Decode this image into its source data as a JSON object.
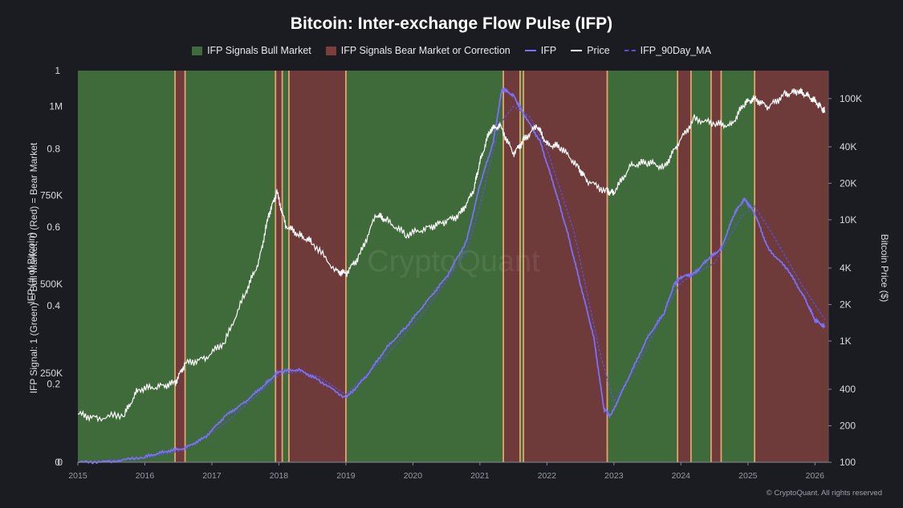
{
  "title": "Bitcoin: Inter-exchange Flow Pulse (IFP)",
  "legend": [
    {
      "label": "IFP Signals Bull Market",
      "kind": "box",
      "color": "#3f6b3a"
    },
    {
      "label": "IFP Signals Bear Market or Correction",
      "kind": "box",
      "color": "#7a3e3b"
    },
    {
      "label": "IFP",
      "kind": "line",
      "color": "#7b6fff"
    },
    {
      "label": "Price",
      "kind": "line",
      "color": "#ffffff"
    },
    {
      "label": "IFP_90Day_MA",
      "kind": "dash",
      "color": "#5a4fd6"
    }
  ],
  "left_axis_signal_label": "IFP Signal: 1 (Green) = Bull Market, 0 (Red) = Bear Market",
  "left_axis_ifp_label": "IFP (# of Bitcoin)",
  "right_axis_label": "Bitcoin Price ($)",
  "copyright": "© CryptoQuant. All rights reserved",
  "watermark": "CryptoQuant",
  "chart_data": {
    "type": "line",
    "x_ticks": [
      "2015",
      "2016",
      "2017",
      "2018",
      "2019",
      "2020",
      "2021",
      "2022",
      "2023",
      "2024",
      "2025",
      "2026"
    ],
    "x_range": [
      2015.0,
      2026.2
    ],
    "signal_axis": {
      "ticks": [
        "0",
        "0.2",
        "0.4",
        "0.6",
        "0.8",
        "1"
      ],
      "range": [
        0,
        1
      ]
    },
    "ifp_axis": {
      "ticks": [
        "0",
        "250K",
        "500K",
        "750K",
        "1M"
      ],
      "range": [
        0,
        1100000
      ]
    },
    "price_axis": {
      "ticks": [
        "100",
        "200",
        "400",
        "1K",
        "2K",
        "4K",
        "10K",
        "20K",
        "40K",
        "100K"
      ],
      "tick_values": [
        100,
        200,
        400,
        1000,
        2000,
        4000,
        10000,
        20000,
        40000,
        100000
      ],
      "scale": "log",
      "range": [
        100,
        170000
      ]
    },
    "regimes": [
      {
        "start": 2015.0,
        "end": 2016.45,
        "signal": 1
      },
      {
        "start": 2016.45,
        "end": 2016.6,
        "signal": 0
      },
      {
        "start": 2016.6,
        "end": 2017.95,
        "signal": 1
      },
      {
        "start": 2017.95,
        "end": 2018.05,
        "signal": 0
      },
      {
        "start": 2018.05,
        "end": 2018.15,
        "signal": 1
      },
      {
        "start": 2018.15,
        "end": 2019.0,
        "signal": 0
      },
      {
        "start": 2019.0,
        "end": 2021.35,
        "signal": 1
      },
      {
        "start": 2021.35,
        "end": 2021.6,
        "signal": 0
      },
      {
        "start": 2021.6,
        "end": 2021.65,
        "signal": 1
      },
      {
        "start": 2021.65,
        "end": 2022.9,
        "signal": 0
      },
      {
        "start": 2022.9,
        "end": 2023.95,
        "signal": 1
      },
      {
        "start": 2023.95,
        "end": 2024.15,
        "signal": 0
      },
      {
        "start": 2024.15,
        "end": 2024.45,
        "signal": 1
      },
      {
        "start": 2024.45,
        "end": 2024.6,
        "signal": 0
      },
      {
        "start": 2024.6,
        "end": 2025.1,
        "signal": 1
      },
      {
        "start": 2025.1,
        "end": 2026.2,
        "signal": 0
      }
    ],
    "series": [
      {
        "name": "Price",
        "axis": "price",
        "x": [
          2015.0,
          2015.3,
          2015.7,
          2015.9,
          2016.2,
          2016.45,
          2016.6,
          2016.9,
          2017.2,
          2017.5,
          2017.7,
          2017.85,
          2017.97,
          2018.1,
          2018.3,
          2018.5,
          2018.85,
          2019.0,
          2019.2,
          2019.45,
          2019.6,
          2019.9,
          2020.2,
          2020.45,
          2020.7,
          2020.9,
          2021.0,
          2021.15,
          2021.3,
          2021.5,
          2021.65,
          2021.85,
          2022.0,
          2022.2,
          2022.45,
          2022.6,
          2022.9,
          2023.0,
          2023.25,
          2023.5,
          2023.75,
          2023.95,
          2024.2,
          2024.5,
          2024.75,
          2024.95,
          2025.1,
          2025.3,
          2025.55,
          2025.75,
          2025.9,
          2026.05,
          2026.15
        ],
        "values": [
          250,
          230,
          250,
          400,
          420,
          450,
          650,
          720,
          1000,
          2500,
          4500,
          11000,
          17000,
          9000,
          7500,
          6500,
          3800,
          3600,
          5000,
          11000,
          10000,
          7500,
          8500,
          9500,
          11000,
          17000,
          30000,
          55000,
          60000,
          35000,
          45000,
          60000,
          42000,
          40000,
          28000,
          21000,
          17000,
          16800,
          28000,
          30000,
          27000,
          42000,
          68000,
          62000,
          60000,
          92000,
          100000,
          85000,
          108000,
          115000,
          105000,
          90000,
          78000
        ]
      },
      {
        "name": "IFP",
        "axis": "ifp",
        "x": [
          2015.0,
          2015.5,
          2016.0,
          2016.3,
          2016.6,
          2016.9,
          2017.2,
          2017.5,
          2017.8,
          2018.0,
          2018.3,
          2018.6,
          2019.0,
          2019.3,
          2019.6,
          2019.9,
          2020.2,
          2020.5,
          2020.8,
          2021.0,
          2021.2,
          2021.33,
          2021.5,
          2021.65,
          2021.9,
          2022.1,
          2022.3,
          2022.5,
          2022.7,
          2022.85,
          2022.95,
          2023.2,
          2023.5,
          2023.75,
          2023.9,
          2024.0,
          2024.2,
          2024.4,
          2024.6,
          2024.8,
          2024.95,
          2025.1,
          2025.3,
          2025.6,
          2025.85,
          2026.0,
          2026.15
        ],
        "values": [
          0,
          2000,
          15000,
          30000,
          40000,
          70000,
          130000,
          170000,
          220000,
          255000,
          260000,
          230000,
          180000,
          240000,
          320000,
          380000,
          450000,
          520000,
          620000,
          780000,
          900000,
          1050000,
          1030000,
          980000,
          900000,
          780000,
          650000,
          500000,
          350000,
          150000,
          130000,
          230000,
          350000,
          420000,
          500000,
          520000,
          530000,
          570000,
          600000,
          700000,
          740000,
          700000,
          600000,
          540000,
          460000,
          400000,
          380000
        ]
      },
      {
        "name": "IFP_90Day_MA",
        "axis": "ifp",
        "x": [
          2015.0,
          2016.0,
          2016.6,
          2017.2,
          2017.8,
          2018.0,
          2018.3,
          2018.6,
          2019.0,
          2019.6,
          2020.2,
          2020.8,
          2021.0,
          2021.3,
          2021.5,
          2021.75,
          2022.0,
          2022.4,
          2022.8,
          2023.0,
          2023.4,
          2023.8,
          2024.0,
          2024.5,
          2024.9,
          2025.1,
          2025.4,
          2025.8,
          2026.15
        ],
        "values": [
          0,
          12000,
          35000,
          110000,
          210000,
          245000,
          255000,
          240000,
          190000,
          300000,
          430000,
          590000,
          720000,
          950000,
          1000000,
          970000,
          880000,
          650000,
          300000,
          170000,
          290000,
          440000,
          505000,
          560000,
          690000,
          720000,
          630000,
          500000,
          400000
        ]
      }
    ]
  }
}
